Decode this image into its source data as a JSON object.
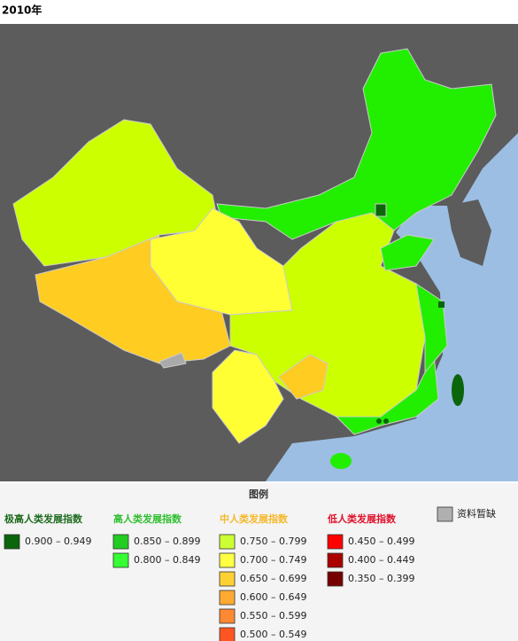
{
  "title": "2010年",
  "legend": {
    "title": "图例",
    "groups": [
      {
        "name": "极高人类发展指数",
        "color": "#1f6b1f",
        "items": [
          {
            "label": "0.900 – 0.949",
            "color": "#0b650b"
          }
        ]
      },
      {
        "name": "高人类发展指数",
        "color": "#2fbf2f",
        "items": [
          {
            "label": "0.850 – 0.899",
            "color": "#22cc22"
          },
          {
            "label": "0.800 – 0.849",
            "color": "#33ff33"
          }
        ]
      },
      {
        "name": "中人类发展指数",
        "color": "#f5b82a",
        "items": [
          {
            "label": "0.750 – 0.799",
            "color": "#ccff33"
          },
          {
            "label": "0.700 – 0.749",
            "color": "#ffff44"
          },
          {
            "label": "0.650 – 0.699",
            "color": "#ffd033"
          },
          {
            "label": "0.600 – 0.649",
            "color": "#ffaa33"
          },
          {
            "label": "0.550 – 0.599",
            "color": "#ff8833"
          },
          {
            "label": "0.500 – 0.549",
            "color": "#ff5522"
          }
        ]
      },
      {
        "name": "低人类发展指数",
        "color": "#e0102a",
        "items": [
          {
            "label": "0.450 – 0.499",
            "color": "#ff0000"
          },
          {
            "label": "0.400 – 0.449",
            "color": "#aa0000"
          },
          {
            "label": "0.350 – 0.399",
            "color": "#770000"
          }
        ]
      }
    ],
    "missing": {
      "label": "资料暂缺",
      "color": "#b0b0b0"
    }
  }
}
